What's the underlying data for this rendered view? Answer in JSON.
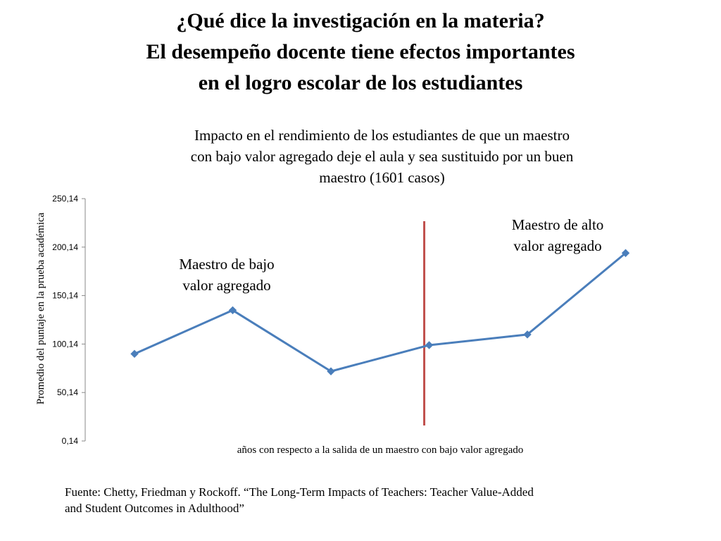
{
  "slide": {
    "title_lines": [
      "¿Qué dice la investigación en la materia?",
      "El desempeño docente tiene efectos importantes",
      "en el logro escolar de los estudiantes"
    ],
    "source_lines": [
      "Fuente: Chetty, Friedman y Rockoff. “The Long-Term Impacts of Teachers: Teacher Value-Added",
      "and Student Outcomes in Adulthood”"
    ]
  },
  "colors": {
    "series": "#4a7ebb",
    "divider": "#c0504d",
    "axis": "#888888"
  },
  "chart_data": {
    "type": "line",
    "title_lines": [
      "Impacto en el rendimiento de los estudiantes de que un maestro",
      "con bajo valor agregado deje el aula y sea sustituido por un buen",
      "maestro (1601 casos)"
    ],
    "xlabel": "años con respecto a la salida de un maestro con bajo valor agregado",
    "ylabel": "Promedio del puntaje en la prueba académica",
    "ylim": [
      0.14,
      250.14
    ],
    "y_ticks": [
      "0,14",
      "50,14",
      "100,14",
      "150,14",
      "200,14",
      "250,14"
    ],
    "y_tick_values": [
      0.14,
      50.14,
      100.14,
      150.14,
      200.14,
      250.14
    ],
    "series": [
      {
        "values": [
          90,
          135,
          72,
          99,
          110,
          194
        ]
      }
    ],
    "divider_after_index": 2.95,
    "annotations": [
      {
        "text_lines": [
          "Maestro de bajo",
          "valor agregado"
        ]
      },
      {
        "text_lines": [
          "Maestro de alto",
          "valor agregado"
        ]
      }
    ],
    "grid": false,
    "legend": "none"
  }
}
